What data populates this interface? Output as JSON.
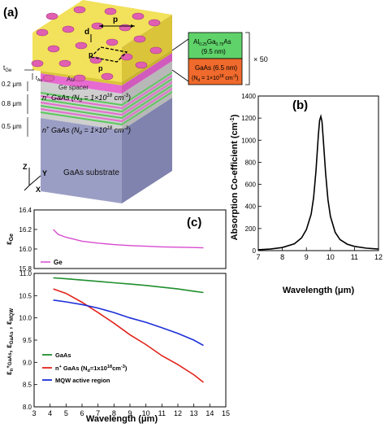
{
  "panels": {
    "a": "(a)",
    "b": "(b)",
    "c": "(c)"
  },
  "device": {
    "period_label": "p",
    "diameter_label": "d",
    "cell_p_top": "p",
    "cell_p_bottom": "p",
    "t_ge": "t",
    "t_ge_sub": "Ge",
    "t_au": "t",
    "t_au_sub": "Au",
    "au_label": "Au",
    "ge_spacer_label": "Ge spacer",
    "n_layer_top_text": "n",
    "n_layer_top_sup": "+",
    "n_layer_top_rest": " GaAs (N",
    "n_layer_top_sub": "d",
    "n_layer_top_val": " = 1×10",
    "n_layer_top_exp": "18",
    "n_layer_top_unit": " cm",
    "n_layer_top_unit_exp": "-3",
    "n_layer_top_close": ")",
    "n_layer_bot_text": "n",
    "n_layer_bot_sup": "+",
    "n_layer_bot_rest": " GaAs (N",
    "n_layer_bot_sub": "d",
    "n_layer_bot_val": " = 1×10",
    "n_layer_bot_exp": "18",
    "n_layer_bot_unit": " cm",
    "n_layer_bot_unit_exp": "-3",
    "n_layer_bot_close": ")",
    "substrate_label": "GaAs substrate",
    "dim_02": "0.2 μm",
    "dim_08": "0.8 μm",
    "dim_05": "0.5 μm",
    "axis_z": "Z",
    "axis_y": "Y",
    "axis_x": "X",
    "legend_algaas_1": "Al",
    "legend_algaas_1_sub1": "0.25",
    "legend_algaas_ga": "Ga",
    "legend_algaas_1_sub2": "0.75",
    "legend_algaas_as": "As",
    "legend_algaas_2": "(9.5 nm)",
    "legend_gaas_1": "GaAs (6.5 nm)",
    "legend_gaas_2a": "(N",
    "legend_gaas_2sub": "d",
    "legend_gaas_2b": " = 1×10",
    "legend_gaas_2exp": "18",
    "legend_gaas_2c": " cm",
    "legend_gaas_2exp2": "-3",
    "legend_gaas_2d": ")",
    "repeat_label": "× 50",
    "colors": {
      "gold": "#f2e15a",
      "gold_side": "#d9c43a",
      "hole": "#e05fb0",
      "pink": "#e66ad0",
      "green": "#59c95a",
      "algaas_box": "#5fd36a",
      "gaas_box": "#ef6a2c",
      "gray": "#c9c9c9",
      "substrate": "#9b9ec4",
      "substrate_dark": "#7f83ad"
    }
  },
  "chart_data": [
    {
      "type": "line",
      "panel": "(b)",
      "xlabel": "Wavelength (μm)",
      "ylabel": "Absorption Co-efficient (cm",
      "ylabel_exp": "-1",
      "ylabel_close": ")",
      "xlim": [
        7,
        12
      ],
      "ylim": [
        0,
        1400
      ],
      "xticks": [
        7,
        8,
        9,
        10,
        11,
        12
      ],
      "yticks": [
        0,
        200,
        400,
        600,
        800,
        1000,
        1200,
        1400
      ],
      "series": [
        {
          "color": "#000000",
          "x": [
            7.0,
            7.5,
            8.0,
            8.5,
            8.8,
            9.0,
            9.2,
            9.3,
            9.4,
            9.5,
            9.55,
            9.6,
            9.65,
            9.7,
            9.8,
            9.9,
            10.0,
            10.2,
            10.4,
            10.7,
            11.0,
            11.5,
            12.0
          ],
          "y": [
            8,
            14,
            28,
            62,
            115,
            190,
            330,
            480,
            720,
            1050,
            1180,
            1215,
            1170,
            1020,
            700,
            460,
            310,
            165,
            100,
            58,
            38,
            22,
            14
          ]
        }
      ]
    },
    {
      "type": "line",
      "panel": "(c) top",
      "ylabel": "ε",
      "ylabel_sub": "Ge",
      "xlim": [
        3,
        15
      ],
      "ylim": [
        15.8,
        16.4
      ],
      "yticks": [
        15.8,
        16.0,
        16.2,
        16.4
      ],
      "legend": "Ge",
      "series": [
        {
          "name": "Ge",
          "color": "#d84bd0",
          "x": [
            4.2,
            4.5,
            5,
            6,
            7,
            8,
            9,
            10,
            11,
            12,
            13,
            13.6
          ],
          "y": [
            16.2,
            16.15,
            16.12,
            16.08,
            16.06,
            16.045,
            16.035,
            16.028,
            16.022,
            16.018,
            16.015,
            16.012
          ]
        }
      ]
    },
    {
      "type": "line",
      "panel": "(c) bottom",
      "xlabel": "Wavelength (μm)",
      "ylabel_parts": [
        "ε",
        "n",
        "+",
        "GaAs",
        ", ε",
        "GaAs",
        " , ε",
        "MQW"
      ],
      "xlim": [
        3,
        15
      ],
      "ylim": [
        8.0,
        11.0
      ],
      "xticks": [
        3,
        4,
        5,
        6,
        7,
        8,
        9,
        10,
        11,
        12,
        13,
        14,
        15
      ],
      "yticks": [
        8.0,
        8.5,
        9.0,
        9.5,
        10.0,
        10.5,
        11.0
      ],
      "series": [
        {
          "name": "GaAs",
          "color": "#1f8f2e",
          "x": [
            4.2,
            5,
            6,
            7,
            8,
            9,
            10,
            11,
            12,
            13,
            13.6
          ],
          "y": [
            10.9,
            10.88,
            10.85,
            10.82,
            10.79,
            10.76,
            10.73,
            10.69,
            10.65,
            10.6,
            10.57
          ]
        },
        {
          "name": "n",
          "name_sup": "+",
          "name_rest": " GaAs (N",
          "name_sub": "d",
          "name_tail": "=1x10",
          "name_exp": "18",
          "name_unit": "cm",
          "name_unit_exp": "-3",
          "name_close": ")",
          "color": "#e2231a",
          "x": [
            4.2,
            5,
            6,
            7,
            8,
            9,
            10,
            11,
            12,
            13,
            13.6
          ],
          "y": [
            10.65,
            10.55,
            10.35,
            10.12,
            9.88,
            9.62,
            9.4,
            9.15,
            8.95,
            8.72,
            8.55
          ]
        },
        {
          "name": "MQW active region",
          "color": "#1c2fd8",
          "x": [
            4.2,
            5,
            6,
            7,
            8,
            9,
            10,
            11,
            12,
            13,
            13.6
          ],
          "y": [
            10.4,
            10.36,
            10.3,
            10.22,
            10.12,
            10.0,
            9.9,
            9.78,
            9.65,
            9.5,
            9.38
          ]
        }
      ]
    }
  ]
}
